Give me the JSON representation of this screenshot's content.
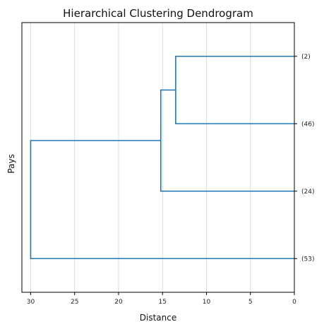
{
  "chart_data": {
    "type": "dendrogram",
    "title": "Hierarchical Clustering Dendrogram",
    "xlabel": "Distance",
    "ylabel": "Pays",
    "xlim": [
      31,
      0
    ],
    "x_ticks": [
      30,
      25,
      20,
      15,
      10,
      5,
      0
    ],
    "grid": "vertical",
    "leaves": [
      "(2)",
      "(46)",
      "(24)",
      "(53)"
    ],
    "merges": [
      {
        "left": "(2)",
        "right": "(46)",
        "distance": 13.5
      },
      {
        "left": "(2)+(46)",
        "right": "(24)",
        "distance": 15.2
      },
      {
        "left": "(2)+(46)+(24)",
        "right": "(53)",
        "distance": 30.0
      }
    ],
    "colors": {
      "link": "#1f77b4",
      "frame": "#000000",
      "grid": "#dcdcdc"
    }
  }
}
